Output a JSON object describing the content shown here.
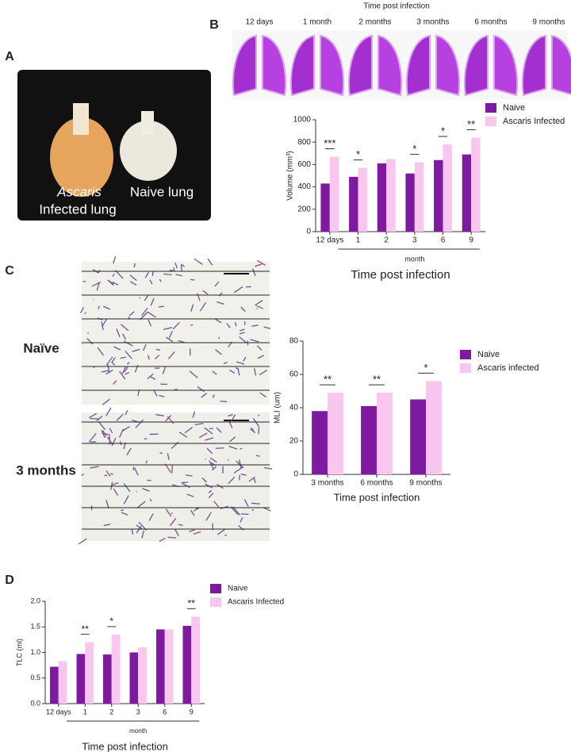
{
  "figure": {
    "letters": [
      "A",
      "B",
      "C",
      "D"
    ],
    "photo_labels": [
      "Ascaris",
      "Infected lung",
      "Naive lung"
    ],
    "lung_header": "Time post infection",
    "lung_times": [
      "12 days",
      "1 month",
      "2 months",
      "3 months",
      "6 months",
      "9 months"
    ],
    "histology_labels": [
      "Naïve",
      "3 months"
    ]
  },
  "chart_data": [
    {
      "type": "bar",
      "ylabel": "Volume  (mm³)",
      "xlabel": "Time post infection",
      "xgroup_label": "month",
      "categories": [
        "12 days",
        "1",
        "2",
        "3",
        "6",
        "9"
      ],
      "series": [
        {
          "name": "Naive",
          "color": "#7d1aa0",
          "values": [
            430,
            490,
            610,
            520,
            640,
            690
          ]
        },
        {
          "name": "Ascaris Infected",
          "color": "#f8c6ee",
          "values": [
            670,
            570,
            650,
            620,
            780,
            840
          ]
        }
      ],
      "significance": [
        "***",
        "*",
        null,
        "*",
        "*",
        "**"
      ],
      "ylim": [
        0,
        1000
      ],
      "yticks": [
        0,
        200,
        400,
        600,
        800,
        1000
      ]
    },
    {
      "type": "bar",
      "ylabel": "MLI  (um)",
      "xlabel": "Time post infection",
      "categories": [
        "3 months",
        "6 months",
        "9 months"
      ],
      "series": [
        {
          "name": "Naive",
          "color": "#7d1aa0",
          "values": [
            38,
            41,
            45
          ]
        },
        {
          "name": "Ascaris infected",
          "color": "#f8c6ee",
          "values": [
            49,
            49,
            56
          ]
        }
      ],
      "significance": [
        "**",
        "**",
        "*"
      ],
      "ylim": [
        0,
        80
      ],
      "yticks": [
        0,
        20,
        40,
        60,
        80
      ]
    },
    {
      "type": "bar",
      "ylabel": "TLC (ml)",
      "xlabel": "Time post infection",
      "xgroup_label": "month",
      "categories": [
        "12 days",
        "1",
        "2",
        "3",
        "6",
        "9"
      ],
      "series": [
        {
          "name": "Naive",
          "color": "#7d1aa0",
          "values": [
            0.72,
            0.97,
            0.96,
            1.0,
            1.45,
            1.52
          ]
        },
        {
          "name": "Ascaris Infected",
          "color": "#f8c6ee",
          "values": [
            0.83,
            1.2,
            1.35,
            1.1,
            1.45,
            1.7
          ]
        }
      ],
      "significance": [
        null,
        "**",
        "*",
        null,
        null,
        "**"
      ],
      "ylim": [
        0,
        2.0
      ],
      "yticks": [
        {
          "value": 0,
          "label": "0.0"
        },
        0.5,
        {
          "value": 1.0,
          "label": "1.0"
        },
        1.5,
        {
          "value": 2.0,
          "label": "2.0"
        }
      ]
    }
  ]
}
